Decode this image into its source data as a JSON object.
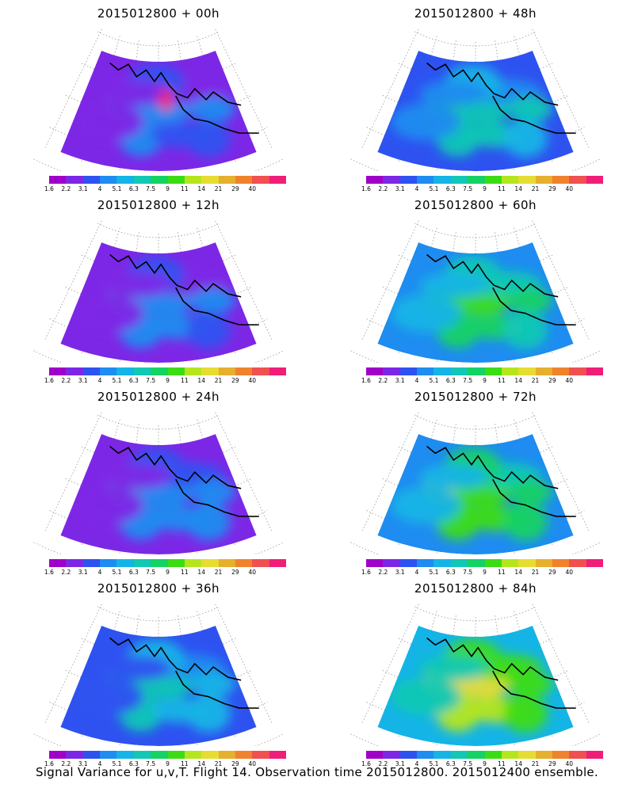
{
  "caption": "Signal Variance for u,v,T. Flight 14. Observation time 2015012800. 2015012400 ensemble.",
  "colorbar": {
    "labels": [
      "1.6",
      "2.2",
      "3.1",
      "4",
      "5.1",
      "6.3",
      "7.5",
      "9",
      "11",
      "14",
      "21",
      "29",
      "40"
    ],
    "colors": [
      "#a000c8",
      "#7d27e6",
      "#2e52f0",
      "#1e8cf0",
      "#14b4e6",
      "#12c8b4",
      "#14d264",
      "#3cdc14",
      "#b4e61e",
      "#e6dc32",
      "#e6af2d",
      "#f0822d",
      "#f05050",
      "#f01e78"
    ]
  },
  "panels": [
    {
      "title": "2015012800 + 00h",
      "intensity": 0.1,
      "hotspot": true
    },
    {
      "title": "2015012800 + 48h",
      "intensity": 0.45,
      "hotspot": false
    },
    {
      "title": "2015012800 + 12h",
      "intensity": 0.18,
      "hotspot": false
    },
    {
      "title": "2015012800 + 60h",
      "intensity": 0.55,
      "hotspot": false
    },
    {
      "title": "2015012800 + 24h",
      "intensity": 0.26,
      "hotspot": false
    },
    {
      "title": "2015012800 + 72h",
      "intensity": 0.68,
      "hotspot": false
    },
    {
      "title": "2015012800 + 36h",
      "intensity": 0.34,
      "hotspot": false
    },
    {
      "title": "2015012800 + 84h",
      "intensity": 0.75,
      "hotspot": false
    }
  ]
}
